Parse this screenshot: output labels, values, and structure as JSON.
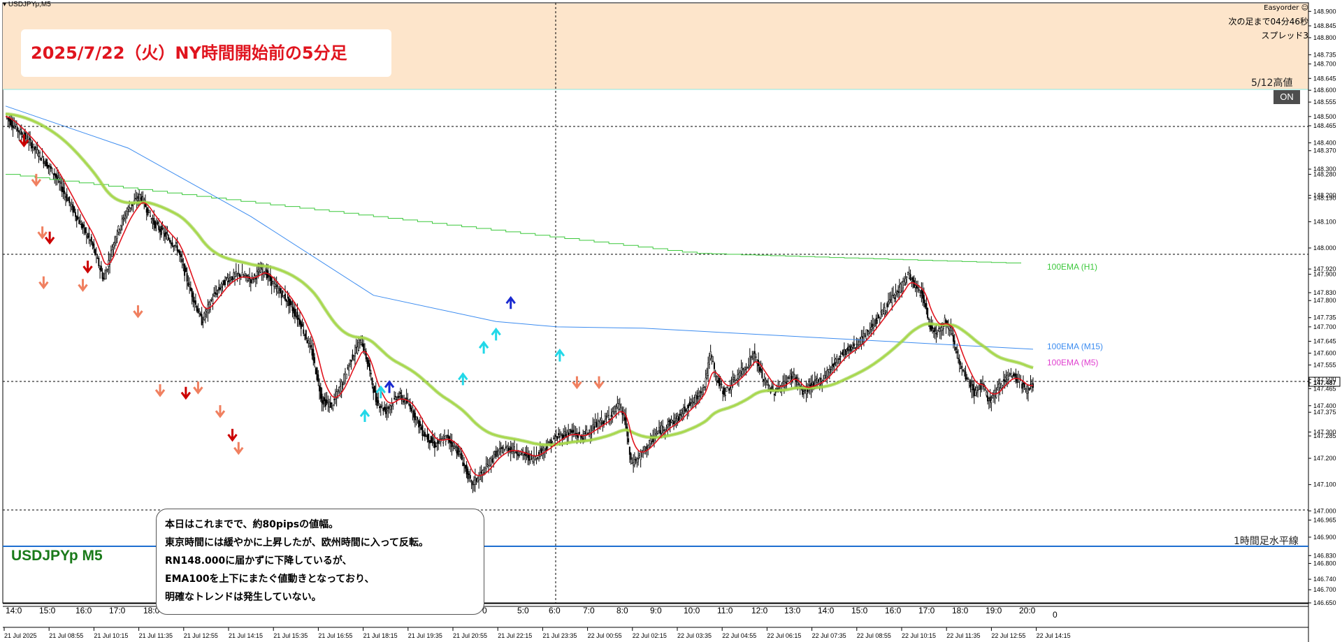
{
  "window": {
    "title": "USDJPYp,M5",
    "symbol_label": "USDJPYp M5"
  },
  "overlay": {
    "title": "2025/7/22（火）NY時間開始前の5分足",
    "ea_name": "Easyorder",
    "next_bar": "次の足まで04分46秒",
    "spread": "スプレッド3",
    "high_label": "5/12高値",
    "on_button": "ON",
    "hline_label": "1時間足水平線"
  },
  "ema_labels": {
    "h1": "100EMA (H1)",
    "m15": "100EMA (M15)",
    "m5": "100EMA (M5)"
  },
  "comment_lines": [
    "本日はこれまでで、約80pipsの値幅。",
    "東京時間には緩やかに上昇したが、欧州時間に入って反転。",
    "RN148.000に届かずに下降しているが、",
    "EMA100を上下にまたぐ値動きとなっており、",
    "明確なトレンドは発生していない。"
  ],
  "colors": {
    "zone": "#fde5cb",
    "candle": "#000000",
    "ema_fast": "#e0141e",
    "ema_m5": "#8cc83c",
    "ema_m15": "#3c8cf0",
    "ema_h1": "#3cc83c",
    "arrow_down": "#cc0000",
    "arrow_down_light": "#f08060",
    "arrow_up_cyan": "#22d8e8",
    "arrow_up_blue": "#1a2ad0",
    "hline": "#1e6fd0",
    "label_h1": "#3cc83c",
    "label_m15": "#3c8cf0",
    "label_m5": "#e040d0"
  },
  "price_axis": {
    "labels": [
      "148.900",
      "148.845",
      "148.800",
      "148.735",
      "148.700",
      "148.645",
      "148.600",
      "148.555",
      "148.500",
      "148.465",
      "148.400",
      "148.370",
      "148.300",
      "148.280",
      "148.200",
      "148.190",
      "148.100",
      "148.000",
      "147.920",
      "147.900",
      "147.830",
      "147.800",
      "147.735",
      "147.700",
      "147.645",
      "147.600",
      "147.555",
      "147.500",
      "147.487",
      "147.465",
      "147.400",
      "147.375",
      "147.300",
      "147.285",
      "147.200",
      "147.100",
      "147.000",
      "146.965",
      "146.900",
      "146.830",
      "146.800",
      "146.740",
      "146.700",
      "146.650"
    ],
    "current_price": "147.487",
    "zero_label": "0"
  },
  "time_axis": {
    "dates": [
      "21 Jul 2025",
      "21 Jul 08:55",
      "21 Jul 10:15",
      "21 Jul 11:35",
      "21 Jul 12:55",
      "21 Jul 14:15",
      "21 Jul 15:35",
      "21 Jul 16:55",
      "21 Jul 18:15",
      "21 Jul 19:35",
      "21 Jul 20:55",
      "21 Jul 22:15",
      "21 Jul 23:35",
      "22 Jul 00:55",
      "22 Jul 02:15",
      "22 Jul 03:35",
      "22 Jul 04:55",
      "22 Jul 06:15",
      "22 Jul 07:35",
      "22 Jul 08:55",
      "22 Jul 10:15",
      "22 Jul 11:35",
      "22 Jul 12:55",
      "22 Jul 14:15"
    ],
    "hours": [
      "14:0",
      "15:0",
      "16:0",
      "17:0",
      "18:0",
      "0",
      "5:0",
      "6:0",
      "7:0",
      "8:0",
      "9:0",
      "10:0",
      "11:0",
      "12:0",
      "13:0",
      "14:0",
      "15:0",
      "16:0",
      "17:0",
      "18:0",
      "19:0",
      "20:0"
    ]
  },
  "chart_data": {
    "type": "candlestick",
    "symbol": "USDJPYp",
    "timeframe": "M5",
    "ylim": [
      146.65,
      148.93
    ],
    "levels": {
      "zone_top": 148.93,
      "zone_bottom": 148.645,
      "round_148": 148.0,
      "hline_1h": 146.905,
      "current": 147.487
    },
    "close_path": [
      [
        0,
        148.5
      ],
      [
        20,
        148.4
      ],
      [
        40,
        148.28
      ],
      [
        60,
        148.1
      ],
      [
        70,
        148.02
      ],
      [
        80,
        147.88
      ],
      [
        90,
        148.05
      ],
      [
        100,
        148.15
      ],
      [
        110,
        148.2
      ],
      [
        120,
        148.1
      ],
      [
        130,
        148.05
      ],
      [
        140,
        148.0
      ],
      [
        150,
        147.85
      ],
      [
        160,
        147.72
      ],
      [
        170,
        147.82
      ],
      [
        180,
        147.88
      ],
      [
        190,
        147.9
      ],
      [
        200,
        147.88
      ],
      [
        210,
        147.92
      ],
      [
        220,
        147.85
      ],
      [
        230,
        147.8
      ],
      [
        240,
        147.72
      ],
      [
        250,
        147.6
      ],
      [
        258,
        147.42
      ],
      [
        266,
        147.4
      ],
      [
        274,
        147.48
      ],
      [
        282,
        147.58
      ],
      [
        290,
        147.65
      ],
      [
        296,
        147.55
      ],
      [
        302,
        147.42
      ],
      [
        310,
        147.38
      ],
      [
        320,
        147.44
      ],
      [
        330,
        147.4
      ],
      [
        340,
        147.3
      ],
      [
        350,
        147.25
      ],
      [
        360,
        147.28
      ],
      [
        370,
        147.22
      ],
      [
        380,
        147.1
      ],
      [
        390,
        147.15
      ],
      [
        400,
        147.22
      ],
      [
        410,
        147.24
      ],
      [
        420,
        147.22
      ],
      [
        430,
        147.2
      ],
      [
        440,
        147.24
      ],
      [
        450,
        147.28
      ],
      [
        460,
        147.3
      ],
      [
        470,
        147.28
      ],
      [
        480,
        147.32
      ],
      [
        490,
        147.35
      ],
      [
        496,
        147.38
      ],
      [
        500,
        147.4
      ],
      [
        505,
        147.35
      ],
      [
        510,
        147.18
      ],
      [
        516,
        147.2
      ],
      [
        524,
        147.25
      ],
      [
        532,
        147.3
      ],
      [
        540,
        147.33
      ],
      [
        548,
        147.35
      ],
      [
        556,
        147.4
      ],
      [
        562,
        147.42
      ],
      [
        566,
        147.45
      ],
      [
        570,
        147.48
      ],
      [
        575,
        147.6
      ],
      [
        580,
        147.5
      ],
      [
        586,
        147.45
      ],
      [
        592,
        147.48
      ],
      [
        598,
        147.52
      ],
      [
        604,
        147.55
      ],
      [
        610,
        147.6
      ],
      [
        618,
        147.5
      ],
      [
        626,
        147.45
      ],
      [
        634,
        147.48
      ],
      [
        642,
        147.52
      ],
      [
        650,
        147.45
      ],
      [
        658,
        147.48
      ],
      [
        666,
        147.5
      ],
      [
        674,
        147.55
      ],
      [
        682,
        147.6
      ],
      [
        690,
        147.62
      ],
      [
        698,
        147.65
      ],
      [
        706,
        147.7
      ],
      [
        714,
        147.75
      ],
      [
        722,
        147.8
      ],
      [
        730,
        147.85
      ],
      [
        736,
        147.9
      ],
      [
        742,
        147.85
      ],
      [
        748,
        147.82
      ],
      [
        754,
        147.7
      ],
      [
        760,
        147.68
      ],
      [
        766,
        147.72
      ],
      [
        772,
        147.68
      ],
      [
        778,
        147.55
      ],
      [
        784,
        147.5
      ],
      [
        790,
        147.45
      ],
      [
        796,
        147.48
      ],
      [
        802,
        147.42
      ],
      [
        808,
        147.45
      ],
      [
        814,
        147.5
      ],
      [
        820,
        147.52
      ],
      [
        826,
        147.5
      ],
      [
        832,
        147.46
      ],
      [
        838,
        147.48
      ]
    ],
    "markers": [
      {
        "type": "down",
        "t": 15,
        "p": 148.4
      },
      {
        "type": "down",
        "t": 25,
        "p": 148.25
      },
      {
        "type": "down",
        "t": 30,
        "p": 148.05
      },
      {
        "type": "down",
        "t": 36,
        "p": 148.03
      },
      {
        "type": "down",
        "t": 31,
        "p": 147.86
      },
      {
        "type": "down",
        "t": 63,
        "p": 147.85
      },
      {
        "type": "down",
        "t": 67,
        "p": 147.92
      },
      {
        "type": "down",
        "t": 108,
        "p": 147.75
      },
      {
        "type": "down",
        "t": 126,
        "p": 147.45
      },
      {
        "type": "down",
        "t": 147,
        "p": 147.44
      },
      {
        "type": "down",
        "t": 157,
        "p": 147.46
      },
      {
        "type": "down",
        "t": 175,
        "p": 147.37
      },
      {
        "type": "down",
        "t": 185,
        "p": 147.28
      },
      {
        "type": "down",
        "t": 190,
        "p": 147.23
      },
      {
        "type": "up",
        "t": 293,
        "p": 147.37
      },
      {
        "type": "up",
        "t": 306,
        "p": 147.46
      },
      {
        "type": "up",
        "t": 313,
        "p": 147.48
      },
      {
        "type": "up",
        "t": 373,
        "p": 147.51
      },
      {
        "type": "up",
        "t": 390,
        "p": 147.63
      },
      {
        "type": "up",
        "t": 400,
        "p": 147.68
      },
      {
        "type": "up",
        "t": 412,
        "p": 147.8
      },
      {
        "type": "up",
        "t": 452,
        "p": 147.6
      },
      {
        "type": "down",
        "t": 466,
        "p": 147.48
      },
      {
        "type": "down",
        "t": 484,
        "p": 147.48
      }
    ]
  }
}
